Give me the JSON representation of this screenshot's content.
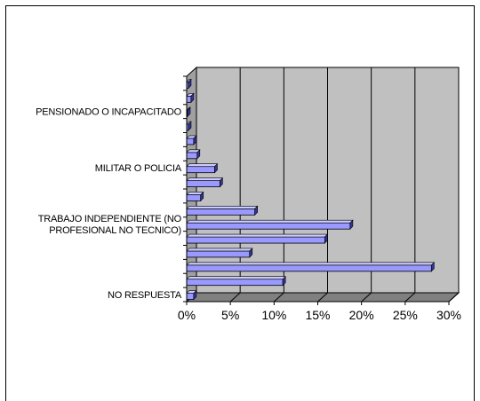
{
  "chart_data": {
    "type": "bar",
    "orientation": "horizontal",
    "style": "3d",
    "categories": [
      "NO RESPUESTA",
      "",
      "",
      "",
      "",
      "TRABAJO INDEPENDIENTE (NO PROFESIONAL NO TECNICO)",
      "",
      "",
      "",
      "MILITAR O POLICIA",
      "",
      "",
      "",
      "PENSIONADO O INCAPACITADO",
      "",
      ""
    ],
    "category_label_lines": [
      [
        "NO RESPUESTA"
      ],
      [
        ""
      ],
      [
        ""
      ],
      [
        ""
      ],
      [
        ""
      ],
      [
        "TRABAJO INDEPENDIENTE (NO",
        "PROFESIONAL NO TECNICO)"
      ],
      [
        ""
      ],
      [
        ""
      ],
      [
        ""
      ],
      [
        "MILITAR O POLICIA"
      ],
      [
        ""
      ],
      [
        ""
      ],
      [
        ""
      ],
      [
        "PENSIONADO O INCAPACITADO"
      ],
      [
        ""
      ],
      [
        ""
      ]
    ],
    "values": [
      0.8,
      11.0,
      28.0,
      7.2,
      15.8,
      18.7,
      7.8,
      1.6,
      3.8,
      3.2,
      1.2,
      0.8,
      0.2,
      0.1,
      0.5,
      0.2
    ],
    "xlim": [
      0,
      30
    ],
    "xticks": [
      "0%",
      "5%",
      "10%",
      "15%",
      "20%",
      "25%",
      "30%"
    ],
    "xtick_values": [
      0,
      5,
      10,
      15,
      20,
      25,
      30
    ],
    "grid": true,
    "legend": "none",
    "colors": {
      "bar_face": "#9999ff",
      "bar_top": "#ccccff",
      "bar_side": "#333399",
      "plot_background": "#c0c0c0",
      "gridline": "#000000"
    }
  }
}
